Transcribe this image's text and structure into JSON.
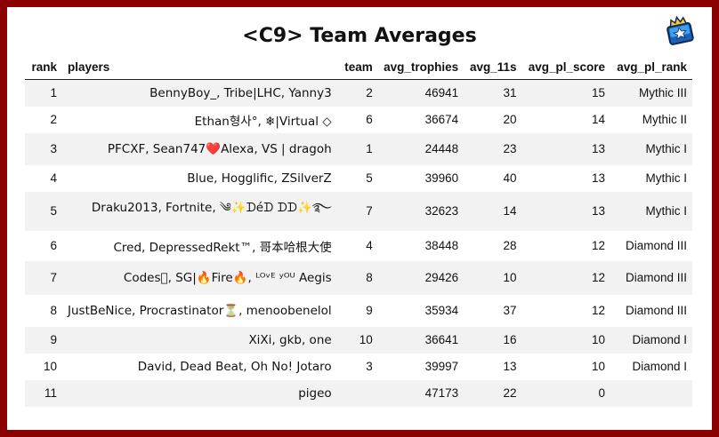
{
  "title": "<C9> Team Averages",
  "logo": "brawl-stars-club-badge-icon",
  "columns": [
    "rank",
    "players",
    "team",
    "avg_trophies",
    "avg_11s",
    "avg_pl_score",
    "avg_pl_rank"
  ],
  "rows": [
    {
      "rank": "1",
      "players": "BennyBoy_, Tribe|LHC, Yanny3",
      "team": "2",
      "avg_trophies": "46941",
      "avg_11s": "31",
      "avg_pl_score": "15",
      "avg_pl_rank": "Mythic III"
    },
    {
      "rank": "2",
      "players": "Ethan형사°, ❄|Virtual ◇",
      "team": "6",
      "avg_trophies": "36674",
      "avg_11s": "20",
      "avg_pl_score": "14",
      "avg_pl_rank": "Mythic II"
    },
    {
      "rank": "3",
      "players": "PFCXF, Sean747❤️Alexa, VS | dragoh",
      "team": "1",
      "avg_trophies": "24448",
      "avg_11s": "23",
      "avg_pl_score": "13",
      "avg_pl_rank": "Mythic I"
    },
    {
      "rank": "4",
      "players": "Blue, Hogglific, ZSilverZ",
      "team": "5",
      "avg_trophies": "39960",
      "avg_11s": "40",
      "avg_pl_score": "13",
      "avg_pl_rank": "Mythic I"
    },
    {
      "rank": "5",
      "players": "Draku2013, Fortnite, ༄✨ᗪéᗪ ᗪᗪ✨࿐",
      "team": "7",
      "avg_trophies": "32623",
      "avg_11s": "14",
      "avg_pl_score": "13",
      "avg_pl_rank": "Mythic I"
    },
    {
      "rank": "6",
      "players": "Cred, DepressedRekt™, 哥本哈根大使",
      "team": "4",
      "avg_trophies": "38448",
      "avg_11s": "28",
      "avg_pl_score": "12",
      "avg_pl_rank": "Diamond III"
    },
    {
      "rank": "7",
      "players": "Codes\u0000, SG|🔥Fire🔥, ᴸᴼᵛᴱ ʸᴼᵁ Aegis",
      "team": "8",
      "avg_trophies": "29426",
      "avg_11s": "10",
      "avg_pl_score": "12",
      "avg_pl_rank": "Diamond III"
    },
    {
      "rank": "8",
      "players": "JustBeNice, Procrastinator⏳, menoobenelol",
      "team": "9",
      "avg_trophies": "35934",
      "avg_11s": "37",
      "avg_pl_score": "12",
      "avg_pl_rank": "Diamond III"
    },
    {
      "rank": "9",
      "players": "XiXi, gkb, one",
      "team": "10",
      "avg_trophies": "36641",
      "avg_11s": "16",
      "avg_pl_score": "10",
      "avg_pl_rank": "Diamond I"
    },
    {
      "rank": "10",
      "players": "David, Dead Beat, Oh No! Jotaro",
      "team": "3",
      "avg_trophies": "39997",
      "avg_11s": "13",
      "avg_pl_score": "10",
      "avg_pl_rank": "Diamond I"
    },
    {
      "rank": "11",
      "players": "pigeo",
      "team": "",
      "avg_trophies": "47173",
      "avg_11s": "22",
      "avg_pl_score": "0",
      "avg_pl_rank": ""
    }
  ]
}
